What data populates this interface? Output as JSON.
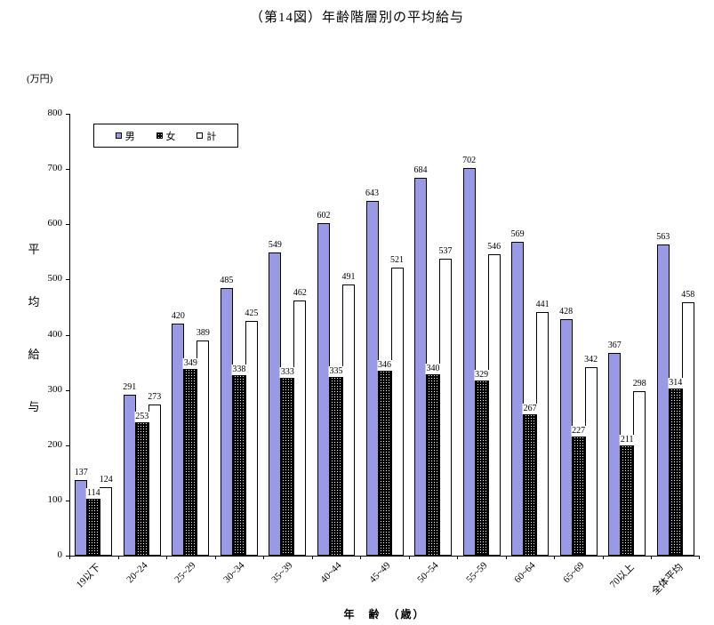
{
  "chart_data": {
    "type": "bar",
    "title": "（第14図）年齢階層別の平均給与",
    "unit_label": "(万円)",
    "ylabel": "平均給与",
    "xlabel": "年　齢　（歳）",
    "ylim": [
      0,
      800
    ],
    "yticks": [
      0,
      100,
      200,
      300,
      400,
      500,
      600,
      700,
      800
    ],
    "grid": false,
    "legend_position": "top-left-inside",
    "categories": [
      "19以下",
      "20~24",
      "25~29",
      "30~34",
      "35~39",
      "40~44",
      "45~49",
      "50~54",
      "55~59",
      "60~64",
      "65~69",
      "70以上",
      "全体平均"
    ],
    "series": [
      {
        "name": "男",
        "key": "male",
        "color": "#9999e6",
        "pattern": "solid",
        "values": [
          137,
          291,
          420,
          485,
          549,
          602,
          643,
          684,
          702,
          569,
          428,
          367,
          563
        ]
      },
      {
        "name": "女",
        "key": "female",
        "color": "#000000",
        "pattern": "white-dots",
        "values": [
          114,
          253,
          349,
          338,
          333,
          335,
          346,
          340,
          329,
          267,
          227,
          211,
          314
        ]
      },
      {
        "name": "計",
        "key": "total",
        "color": "#ffffff",
        "pattern": "solid",
        "values": [
          124,
          273,
          389,
          425,
          462,
          491,
          521,
          537,
          546,
          441,
          342,
          298,
          458
        ]
      }
    ]
  }
}
